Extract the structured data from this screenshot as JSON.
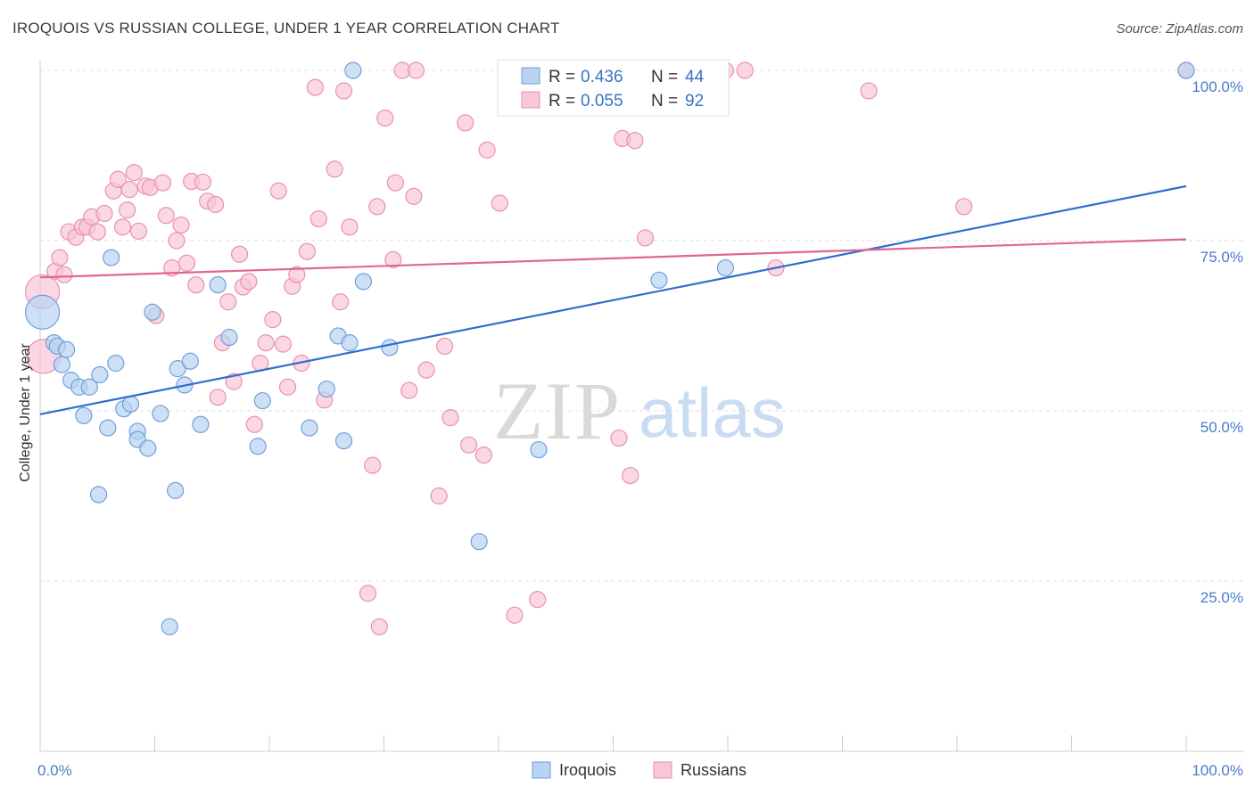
{
  "header": {
    "title": "IROQUOIS VS RUSSIAN COLLEGE, UNDER 1 YEAR CORRELATION CHART",
    "source": "Source: ZipAtlas.com"
  },
  "watermark": {
    "zip": "ZIP",
    "atlas": "atlas"
  },
  "colors": {
    "iroquois_fill": "#b9d3f2",
    "iroquois_stroke": "#6f9fdc",
    "iroquois_line": "#2f6fcc",
    "russians_fill": "#f8c6d6",
    "russians_stroke": "#e892ad",
    "russians_line": "#e06694",
    "grid": "#dddddd",
    "tick_text": "#4a7cc9"
  },
  "chart_data": {
    "type": "scatter",
    "title": "IROQUOIS VS RUSSIAN COLLEGE, UNDER 1 YEAR CORRELATION CHART",
    "xlabel": "",
    "ylabel": "College, Under 1 year",
    "xlim": [
      0,
      100
    ],
    "ylim": [
      0,
      105
    ],
    "x_tick_labels": [
      "0.0%",
      "100.0%"
    ],
    "y_ticks": [
      25,
      50,
      75,
      100
    ],
    "y_tick_labels": [
      "25.0%",
      "50.0%",
      "75.0%",
      "100.0%"
    ],
    "grid": true,
    "legend": {
      "placement": "top-center",
      "entries": [
        {
          "series": "Iroquois",
          "r_label": "R =",
          "r": "0.436",
          "n_label": "N =",
          "n": "44"
        },
        {
          "series": "Russians",
          "r_label": "R =",
          "r": "0.055",
          "n_label": "N =",
          "n": "92"
        }
      ]
    },
    "series": [
      {
        "name": "Iroquois",
        "trend": {
          "x": [
            0,
            100
          ],
          "y": [
            49.5,
            83.0
          ]
        },
        "points": [
          {
            "x": 0.2,
            "y": 64.5,
            "big": true
          },
          {
            "x": 1.2,
            "y": 60.0
          },
          {
            "x": 1.5,
            "y": 59.5
          },
          {
            "x": 2.3,
            "y": 59.0
          },
          {
            "x": 1.9,
            "y": 56.8
          },
          {
            "x": 2.7,
            "y": 54.5
          },
          {
            "x": 3.4,
            "y": 53.5
          },
          {
            "x": 4.3,
            "y": 53.5
          },
          {
            "x": 3.8,
            "y": 49.3
          },
          {
            "x": 5.2,
            "y": 55.3
          },
          {
            "x": 5.9,
            "y": 47.5
          },
          {
            "x": 6.6,
            "y": 57.0
          },
          {
            "x": 7.3,
            "y": 50.3
          },
          {
            "x": 7.9,
            "y": 51.0
          },
          {
            "x": 8.5,
            "y": 47.0
          },
          {
            "x": 8.5,
            "y": 45.8
          },
          {
            "x": 9.4,
            "y": 44.5
          },
          {
            "x": 10.5,
            "y": 49.6
          },
          {
            "x": 6.2,
            "y": 72.5
          },
          {
            "x": 5.1,
            "y": 37.7
          },
          {
            "x": 11.8,
            "y": 38.3
          },
          {
            "x": 11.3,
            "y": 18.3
          },
          {
            "x": 9.8,
            "y": 64.5
          },
          {
            "x": 12.0,
            "y": 56.2
          },
          {
            "x": 12.6,
            "y": 53.8
          },
          {
            "x": 13.1,
            "y": 57.3
          },
          {
            "x": 14.0,
            "y": 48.0
          },
          {
            "x": 15.5,
            "y": 68.5
          },
          {
            "x": 16.5,
            "y": 60.8
          },
          {
            "x": 19.0,
            "y": 44.8
          },
          {
            "x": 19.4,
            "y": 51.5
          },
          {
            "x": 23.5,
            "y": 47.5
          },
          {
            "x": 26.0,
            "y": 61.0
          },
          {
            "x": 27.0,
            "y": 60.0
          },
          {
            "x": 25.0,
            "y": 53.2
          },
          {
            "x": 26.5,
            "y": 45.6
          },
          {
            "x": 28.2,
            "y": 69.0
          },
          {
            "x": 27.3,
            "y": 100.0
          },
          {
            "x": 30.5,
            "y": 59.3
          },
          {
            "x": 38.3,
            "y": 30.8
          },
          {
            "x": 43.5,
            "y": 44.3
          },
          {
            "x": 54.0,
            "y": 69.2
          },
          {
            "x": 59.8,
            "y": 71.0
          },
          {
            "x": 100.0,
            "y": 100.0
          }
        ]
      },
      {
        "name": "Russians",
        "trend": {
          "x": [
            0,
            100
          ],
          "y": [
            69.6,
            75.2
          ]
        },
        "points": [
          {
            "x": 0.2,
            "y": 67.5,
            "big": true
          },
          {
            "x": 0.3,
            "y": 58.0,
            "big": true
          },
          {
            "x": 1.3,
            "y": 70.5
          },
          {
            "x": 1.7,
            "y": 72.5
          },
          {
            "x": 2.1,
            "y": 70.0
          },
          {
            "x": 2.5,
            "y": 76.3
          },
          {
            "x": 3.1,
            "y": 75.5
          },
          {
            "x": 3.7,
            "y": 77.0
          },
          {
            "x": 4.1,
            "y": 77.0
          },
          {
            "x": 4.5,
            "y": 78.5
          },
          {
            "x": 5.0,
            "y": 76.3
          },
          {
            "x": 5.6,
            "y": 79.0
          },
          {
            "x": 6.4,
            "y": 82.3
          },
          {
            "x": 6.8,
            "y": 84.0
          },
          {
            "x": 7.2,
            "y": 77.0
          },
          {
            "x": 7.6,
            "y": 79.5
          },
          {
            "x": 7.8,
            "y": 82.5
          },
          {
            "x": 8.2,
            "y": 85.0
          },
          {
            "x": 8.6,
            "y": 76.4
          },
          {
            "x": 9.2,
            "y": 83.0
          },
          {
            "x": 9.6,
            "y": 82.8
          },
          {
            "x": 10.1,
            "y": 64.0
          },
          {
            "x": 10.7,
            "y": 83.5
          },
          {
            "x": 11.0,
            "y": 78.7
          },
          {
            "x": 11.5,
            "y": 71.0
          },
          {
            "x": 11.9,
            "y": 75.0
          },
          {
            "x": 12.3,
            "y": 77.3
          },
          {
            "x": 12.8,
            "y": 71.7
          },
          {
            "x": 13.2,
            "y": 83.7
          },
          {
            "x": 13.6,
            "y": 68.5
          },
          {
            "x": 14.2,
            "y": 83.6
          },
          {
            "x": 14.6,
            "y": 80.8
          },
          {
            "x": 15.3,
            "y": 80.3
          },
          {
            "x": 15.5,
            "y": 52.0
          },
          {
            "x": 15.9,
            "y": 60.0
          },
          {
            "x": 16.4,
            "y": 66.0
          },
          {
            "x": 16.9,
            "y": 54.3
          },
          {
            "x": 17.4,
            "y": 73.0
          },
          {
            "x": 17.7,
            "y": 68.2
          },
          {
            "x": 18.2,
            "y": 69.0
          },
          {
            "x": 18.7,
            "y": 48.0
          },
          {
            "x": 19.2,
            "y": 57.0
          },
          {
            "x": 19.7,
            "y": 60.0
          },
          {
            "x": 20.3,
            "y": 63.4
          },
          {
            "x": 20.8,
            "y": 82.3
          },
          {
            "x": 21.2,
            "y": 59.8
          },
          {
            "x": 21.6,
            "y": 53.5
          },
          {
            "x": 22.0,
            "y": 68.3
          },
          {
            "x": 22.4,
            "y": 70.0
          },
          {
            "x": 22.8,
            "y": 57.0
          },
          {
            "x": 23.3,
            "y": 73.4
          },
          {
            "x": 24.0,
            "y": 97.5
          },
          {
            "x": 24.3,
            "y": 78.2
          },
          {
            "x": 24.8,
            "y": 51.6
          },
          {
            "x": 25.7,
            "y": 85.5
          },
          {
            "x": 26.2,
            "y": 66.0
          },
          {
            "x": 26.5,
            "y": 97.0
          },
          {
            "x": 27.0,
            "y": 77.0
          },
          {
            "x": 28.6,
            "y": 23.2
          },
          {
            "x": 29.0,
            "y": 42.0
          },
          {
            "x": 29.4,
            "y": 80.0
          },
          {
            "x": 29.6,
            "y": 18.3
          },
          {
            "x": 30.1,
            "y": 93.0
          },
          {
            "x": 30.8,
            "y": 72.2
          },
          {
            "x": 31.0,
            "y": 83.5
          },
          {
            "x": 31.6,
            "y": 100.0
          },
          {
            "x": 32.2,
            "y": 53.0
          },
          {
            "x": 32.6,
            "y": 81.5
          },
          {
            "x": 32.8,
            "y": 100.0
          },
          {
            "x": 33.7,
            "y": 56.0
          },
          {
            "x": 34.8,
            "y": 37.5
          },
          {
            "x": 35.3,
            "y": 59.5
          },
          {
            "x": 35.8,
            "y": 49.0
          },
          {
            "x": 37.1,
            "y": 92.3
          },
          {
            "x": 37.4,
            "y": 45.0
          },
          {
            "x": 38.7,
            "y": 43.5
          },
          {
            "x": 39.0,
            "y": 88.3
          },
          {
            "x": 40.1,
            "y": 80.5
          },
          {
            "x": 41.4,
            "y": 20.0
          },
          {
            "x": 43.4,
            "y": 22.3
          },
          {
            "x": 47.2,
            "y": 100.0
          },
          {
            "x": 50.5,
            "y": 46.0
          },
          {
            "x": 50.8,
            "y": 90.0
          },
          {
            "x": 51.5,
            "y": 40.5
          },
          {
            "x": 51.9,
            "y": 89.7
          },
          {
            "x": 52.8,
            "y": 75.4
          },
          {
            "x": 59.8,
            "y": 100.0
          },
          {
            "x": 61.5,
            "y": 100.0
          },
          {
            "x": 64.2,
            "y": 71.0
          },
          {
            "x": 72.3,
            "y": 97.0
          },
          {
            "x": 80.6,
            "y": 80.0
          },
          {
            "x": 100.0,
            "y": 100.0
          }
        ]
      }
    ]
  }
}
